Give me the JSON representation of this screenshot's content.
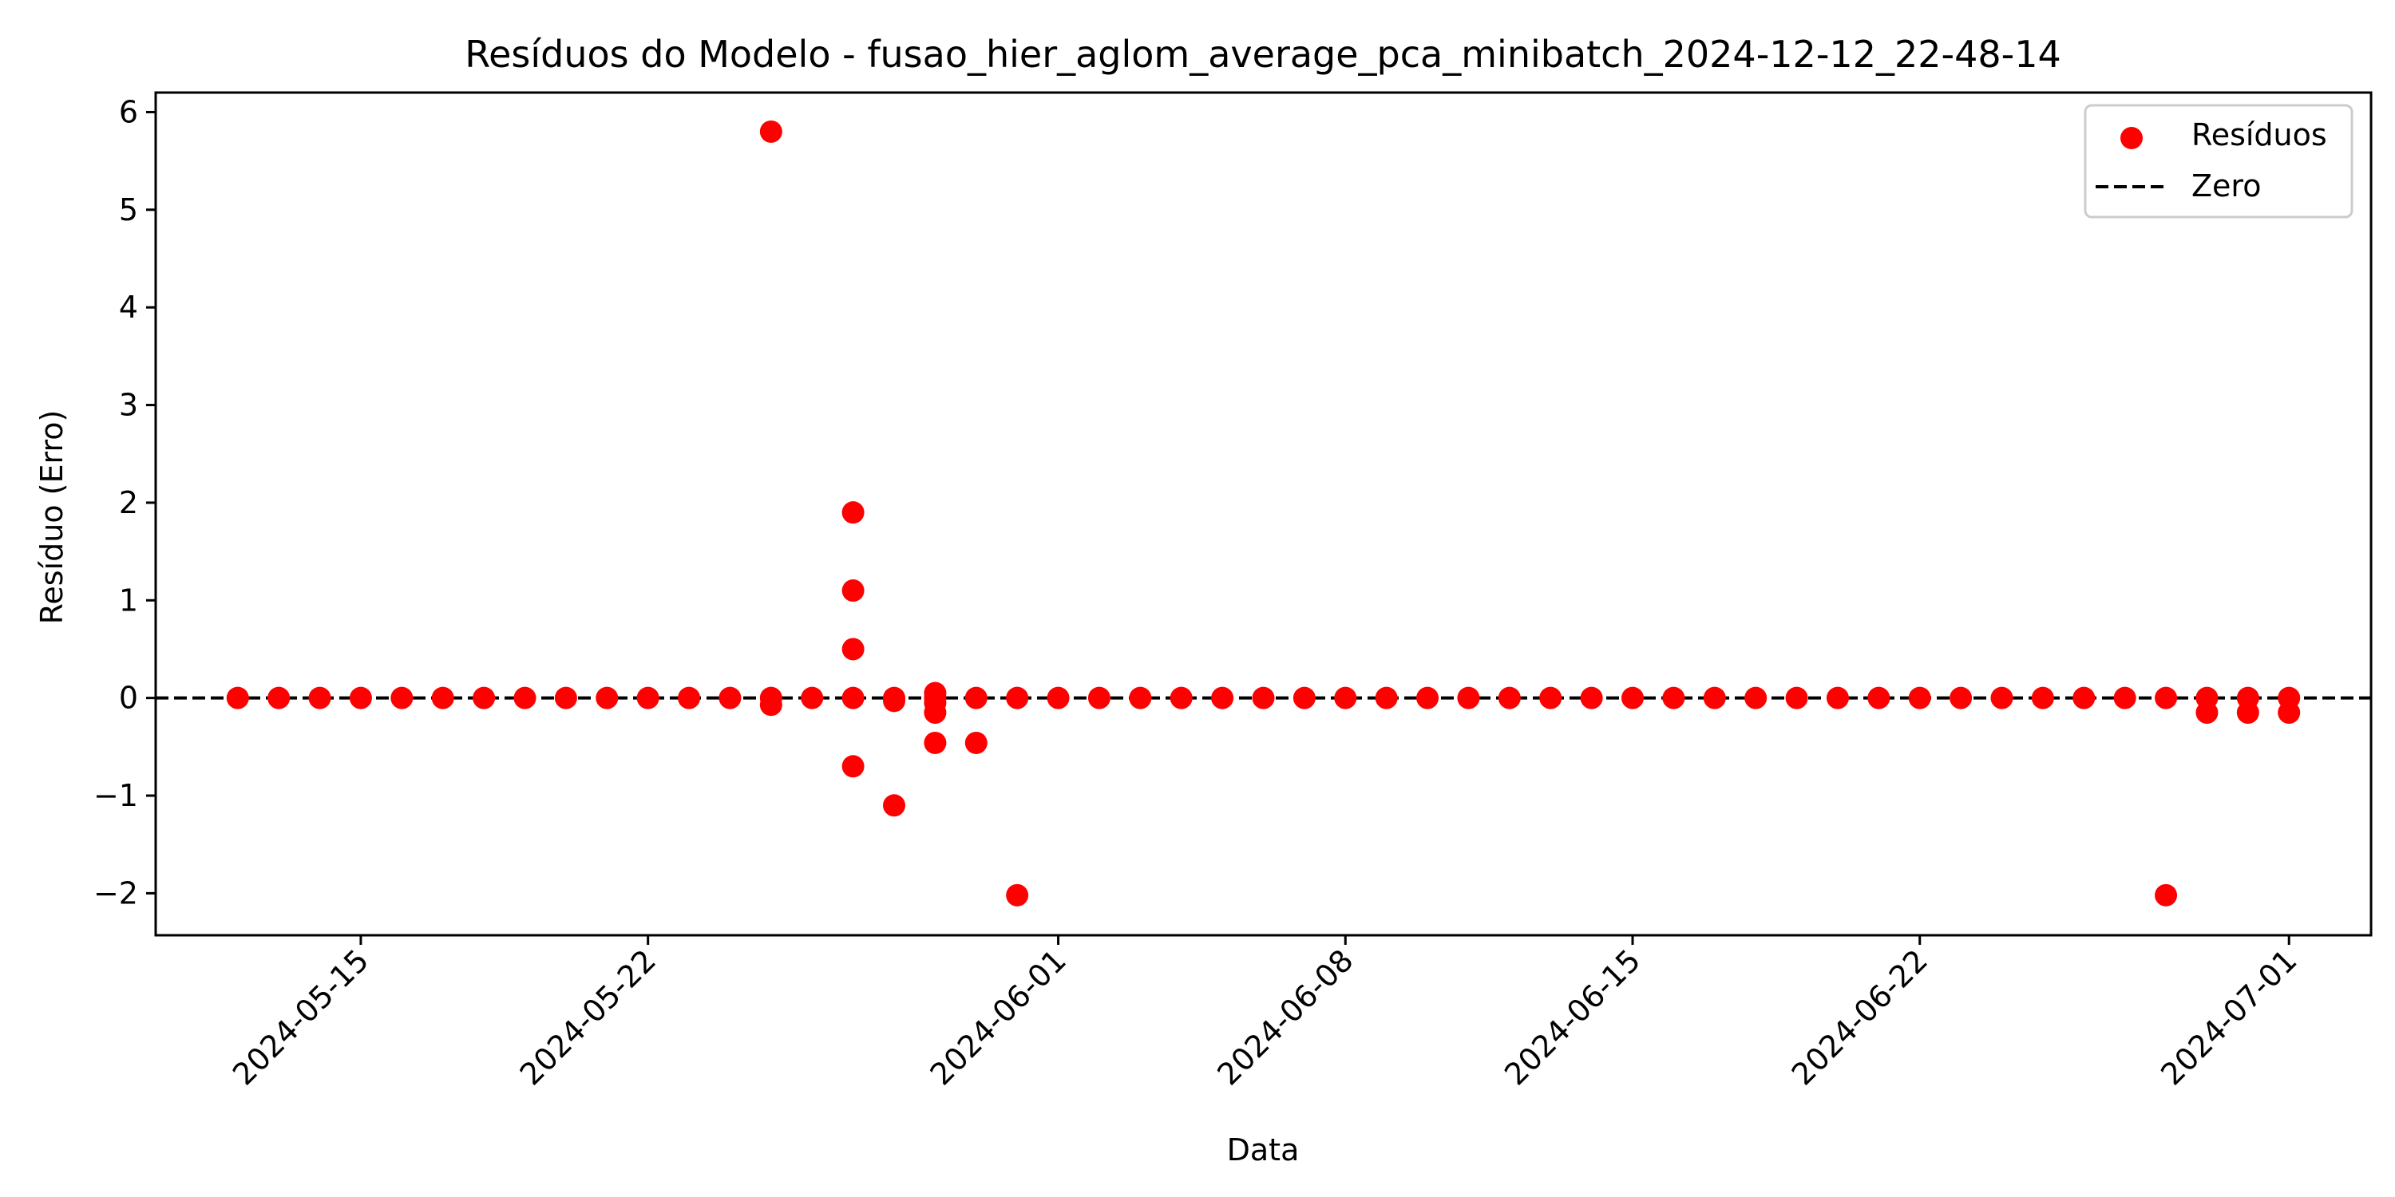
{
  "chart_data": {
    "type": "scatter",
    "title": "Resíduos do Modelo - fusao_hier_aglom_average_pca_minibatch_2024-12-12_22-48-14",
    "xlabel": "Data",
    "ylabel": "Resíduo (Erro)",
    "x_range": [
      "2024-05-10",
      "2024-07-03"
    ],
    "ylim": [
      -2.43,
      6.2
    ],
    "yticks": [
      -2,
      -1,
      0,
      1,
      2,
      3,
      4,
      5,
      6
    ],
    "xticks": [
      "2024-05-15",
      "2024-05-22",
      "2024-06-01",
      "2024-06-08",
      "2024-06-15",
      "2024-06-22",
      "2024-07-01"
    ],
    "grid": false,
    "legend_position": "top-right",
    "reference_line": {
      "name": "Zero",
      "y": 0,
      "style": "dashed",
      "color": "#000000"
    },
    "series": [
      {
        "name": "Resíduos",
        "color": "#ff0000",
        "points": [
          [
            "2024-05-12",
            0
          ],
          [
            "2024-05-13",
            0
          ],
          [
            "2024-05-14",
            0
          ],
          [
            "2024-05-15",
            0
          ],
          [
            "2024-05-16",
            0
          ],
          [
            "2024-05-17",
            0
          ],
          [
            "2024-05-18",
            0
          ],
          [
            "2024-05-19",
            0
          ],
          [
            "2024-05-20",
            0
          ],
          [
            "2024-05-21",
            0
          ],
          [
            "2024-05-22",
            0
          ],
          [
            "2024-05-23",
            0
          ],
          [
            "2024-05-24",
            0
          ],
          [
            "2024-05-25",
            0
          ],
          [
            "2024-05-25",
            5.8
          ],
          [
            "2024-05-25",
            -0.07
          ],
          [
            "2024-05-26",
            0
          ],
          [
            "2024-05-27",
            0
          ],
          [
            "2024-05-27",
            1.1
          ],
          [
            "2024-05-27",
            1.9
          ],
          [
            "2024-05-27",
            0.5
          ],
          [
            "2024-05-27",
            -0.7
          ],
          [
            "2024-05-28",
            0
          ],
          [
            "2024-05-28",
            -1.1
          ],
          [
            "2024-05-28",
            -0.03
          ],
          [
            "2024-05-29",
            0
          ],
          [
            "2024-05-29",
            0.05
          ],
          [
            "2024-05-29",
            -0.15
          ],
          [
            "2024-05-29",
            -0.46
          ],
          [
            "2024-05-29",
            -0.05
          ],
          [
            "2024-05-30",
            0
          ],
          [
            "2024-05-30",
            -0.46
          ],
          [
            "2024-05-31",
            0
          ],
          [
            "2024-05-31",
            -2.02
          ],
          [
            "2024-06-01",
            0
          ],
          [
            "2024-06-02",
            0
          ],
          [
            "2024-06-03",
            0
          ],
          [
            "2024-06-04",
            0
          ],
          [
            "2024-06-05",
            0
          ],
          [
            "2024-06-06",
            0
          ],
          [
            "2024-06-07",
            0
          ],
          [
            "2024-06-08",
            0
          ],
          [
            "2024-06-09",
            0
          ],
          [
            "2024-06-10",
            0
          ],
          [
            "2024-06-11",
            0
          ],
          [
            "2024-06-12",
            0
          ],
          [
            "2024-06-13",
            0
          ],
          [
            "2024-06-14",
            0
          ],
          [
            "2024-06-15",
            0
          ],
          [
            "2024-06-16",
            0
          ],
          [
            "2024-06-17",
            0
          ],
          [
            "2024-06-18",
            0
          ],
          [
            "2024-06-19",
            0
          ],
          [
            "2024-06-20",
            0
          ],
          [
            "2024-06-21",
            0
          ],
          [
            "2024-06-22",
            0
          ],
          [
            "2024-06-23",
            0
          ],
          [
            "2024-06-24",
            0
          ],
          [
            "2024-06-25",
            0
          ],
          [
            "2024-06-26",
            0
          ],
          [
            "2024-06-27",
            0
          ],
          [
            "2024-06-28",
            0
          ],
          [
            "2024-06-28",
            -2.02
          ],
          [
            "2024-06-29",
            0
          ],
          [
            "2024-06-29",
            -0.15
          ],
          [
            "2024-06-30",
            0
          ],
          [
            "2024-06-30",
            -0.15
          ],
          [
            "2024-07-01",
            0
          ],
          [
            "2024-07-01",
            -0.15
          ]
        ]
      }
    ]
  }
}
